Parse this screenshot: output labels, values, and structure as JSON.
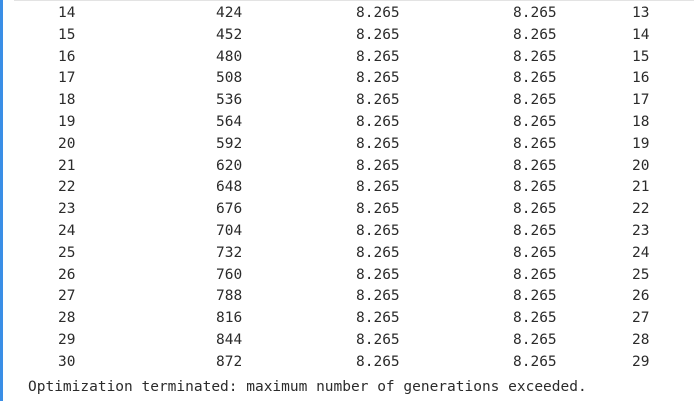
{
  "output": {
    "rows": [
      [
        "14",
        "424",
        "8.265",
        "8.265",
        "13"
      ],
      [
        "15",
        "452",
        "8.265",
        "8.265",
        "14"
      ],
      [
        "16",
        "480",
        "8.265",
        "8.265",
        "15"
      ],
      [
        "17",
        "508",
        "8.265",
        "8.265",
        "16"
      ],
      [
        "18",
        "536",
        "8.265",
        "8.265",
        "17"
      ],
      [
        "19",
        "564",
        "8.265",
        "8.265",
        "18"
      ],
      [
        "20",
        "592",
        "8.265",
        "8.265",
        "19"
      ],
      [
        "21",
        "620",
        "8.265",
        "8.265",
        "20"
      ],
      [
        "22",
        "648",
        "8.265",
        "8.265",
        "21"
      ],
      [
        "23",
        "676",
        "8.265",
        "8.265",
        "22"
      ],
      [
        "24",
        "704",
        "8.265",
        "8.265",
        "23"
      ],
      [
        "25",
        "732",
        "8.265",
        "8.265",
        "24"
      ],
      [
        "26",
        "760",
        "8.265",
        "8.265",
        "25"
      ],
      [
        "27",
        "788",
        "8.265",
        "8.265",
        "26"
      ],
      [
        "28",
        "816",
        "8.265",
        "8.265",
        "27"
      ],
      [
        "29",
        "844",
        "8.265",
        "8.265",
        "28"
      ],
      [
        "30",
        "872",
        "8.265",
        "8.265",
        "29"
      ]
    ],
    "message": "Optimization terminated: maximum number of generations exceeded."
  },
  "colors": {
    "accent": "#3a8ee6",
    "text": "#2b2b2b",
    "background": "#ffffff"
  }
}
